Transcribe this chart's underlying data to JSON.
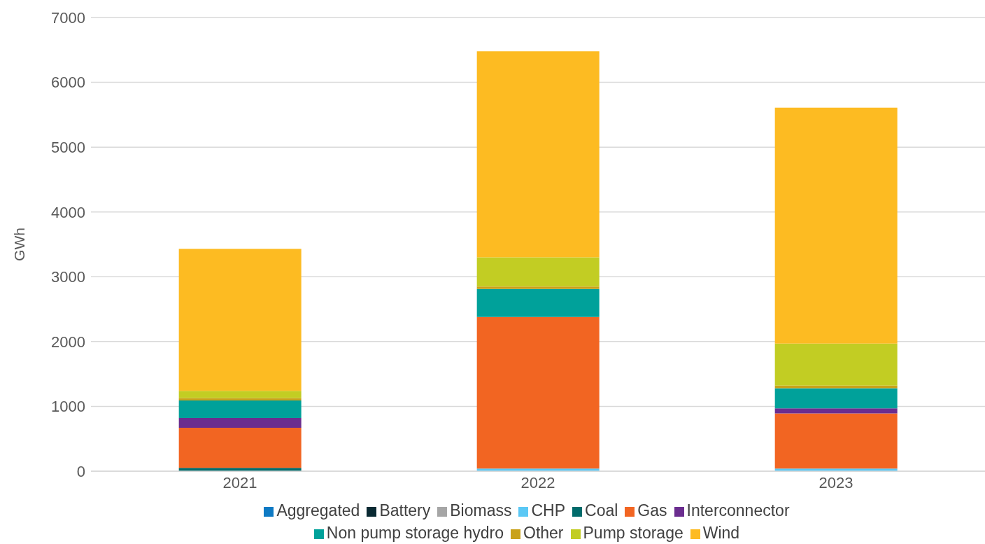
{
  "chart_data": {
    "type": "bar",
    "stacked": true,
    "ylabel": "GWh",
    "categories": [
      "2021",
      "2022",
      "2023"
    ],
    "series": [
      {
        "name": "Aggregated",
        "color": "#0e7ac4",
        "values": [
          0,
          0,
          0
        ]
      },
      {
        "name": "Battery",
        "color": "#0a2a33",
        "values": [
          0,
          0,
          0
        ]
      },
      {
        "name": "Biomass",
        "color": "#a6a6a6",
        "values": [
          0,
          0,
          0
        ]
      },
      {
        "name": "CHP",
        "color": "#5bc8f5",
        "values": [
          0,
          40,
          40
        ]
      },
      {
        "name": "Coal",
        "color": "#006b6b",
        "values": [
          50,
          0,
          0
        ]
      },
      {
        "name": "Gas",
        "color": "#f26522",
        "values": [
          620,
          2340,
          850
        ]
      },
      {
        "name": "Interconnector",
        "color": "#6b2d8f",
        "values": [
          150,
          0,
          80
        ]
      },
      {
        "name": "Non pump storage hydro",
        "color": "#00a19a",
        "values": [
          270,
          430,
          310
        ]
      },
      {
        "name": "Other",
        "color": "#c9a21a",
        "values": [
          40,
          40,
          40
        ]
      },
      {
        "name": "Pump storage",
        "color": "#c2cd23",
        "values": [
          110,
          450,
          650
        ]
      },
      {
        "name": "Wind",
        "color": "#fdbb22",
        "values": [
          2190,
          3180,
          3640
        ]
      }
    ],
    "ylim": [
      0,
      7000
    ],
    "yticks": [
      0,
      1000,
      2000,
      3000,
      4000,
      5000,
      6000,
      7000
    ],
    "grid": "y",
    "legend": "bottom"
  }
}
